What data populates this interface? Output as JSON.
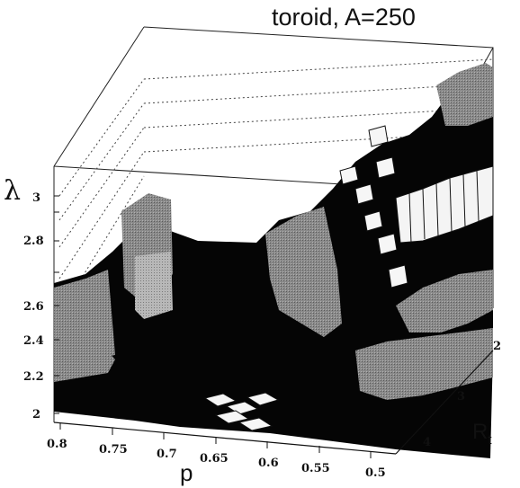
{
  "chart_data": {
    "type": "3d-lego",
    "title": "toroid, A=250",
    "xlabel": "p",
    "ylabel": "R",
    "ylabel_sub": "t",
    "zlabel": "λ",
    "x_ticks": [
      "0.8",
      "0.75",
      "0.7",
      "0.65",
      "0.6",
      "0.55",
      "0.5"
    ],
    "y_ticks": [
      "2",
      "3",
      "4"
    ],
    "z_ticks": [
      "2",
      "2.2",
      "2.4",
      "2.6",
      "2.8",
      "3"
    ],
    "xlim": [
      0.8,
      0.5
    ],
    "ylim": [
      1,
      4.5
    ],
    "zlim": [
      2,
      3.2
    ],
    "grid": "dotted-back-walls",
    "notes": "Lego-style 3D histogram of lambda over (p, R_t); towers rendered in black, grey and white shades"
  }
}
